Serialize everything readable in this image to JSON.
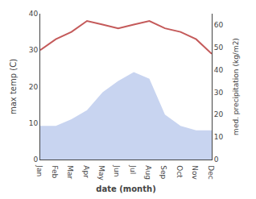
{
  "chart_data": {
    "type": "line",
    "xlabel": "date (month)",
    "ylabel": "max temp (C)",
    "y2label": "med. precipitation (kg/m2)",
    "categories": [
      "Jan",
      "Feb",
      "Mar",
      "Apr",
      "May",
      "Jun",
      "Jul",
      "Aug",
      "Sep",
      "Oct",
      "Nov",
      "Dec"
    ],
    "series": [
      {
        "type": "area",
        "axis": "y2",
        "color": "#c8d4f0",
        "values": [
          15,
          15,
          18,
          22,
          30,
          35,
          39,
          36,
          20,
          15,
          13,
          13
        ]
      },
      {
        "type": "line",
        "color": "#c45a5a",
        "values": [
          30,
          33,
          35,
          38,
          37,
          36,
          37,
          38,
          36,
          35,
          33,
          29
        ]
      }
    ],
    "ylim": [
      0,
      40
    ],
    "yticks": [
      0,
      10,
      20,
      30,
      40
    ],
    "y2lim": [
      0,
      65
    ],
    "y2ticks": [
      0,
      10,
      20,
      30,
      40,
      50,
      60
    ],
    "grid": false
  }
}
